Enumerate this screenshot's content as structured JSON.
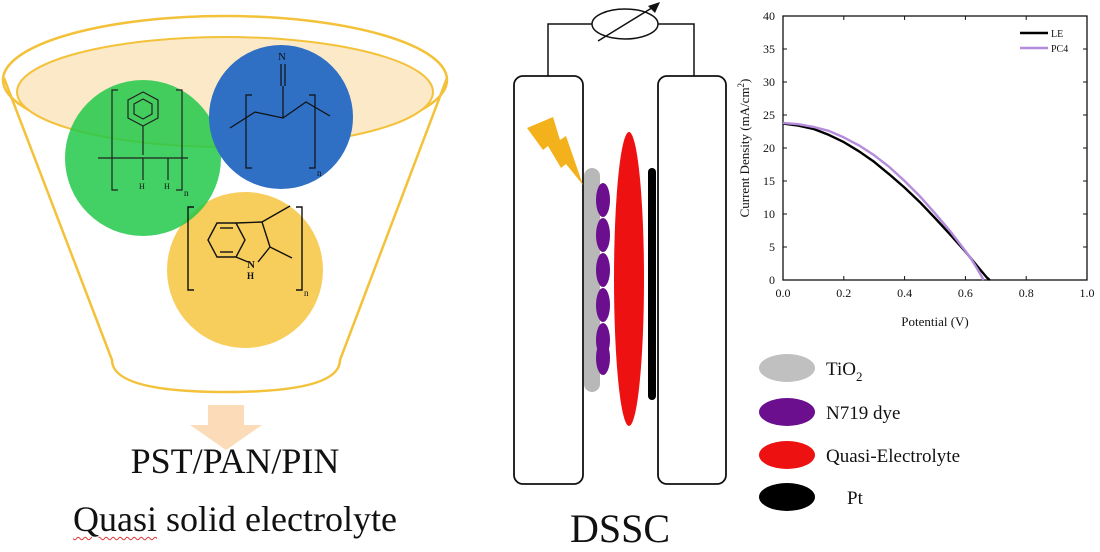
{
  "funnel": {
    "caption_line1": "PST/PAN/PIN",
    "caption_word1": "Quasi",
    "caption_rest": " solid electrolyte",
    "polymer_labels": {
      "pst_h1": "H",
      "pst_h2": "H",
      "pst_n": "n",
      "pan_n_top": "N",
      "pan_n": "n",
      "pin_nh": "N",
      "pin_h": "H",
      "pin_n": "n"
    },
    "colors": {
      "funnel": "#f3c23a",
      "funnel_fill": "#fbe9c8",
      "pst": "#22c84a",
      "pan": "#2f6fc4",
      "pin": "#f6c84a",
      "arrow": "#fcdcb8"
    }
  },
  "dssc": {
    "label": "DSSC",
    "colors": {
      "tio2": "#b8b8b8",
      "dye": "#6b0f8f",
      "electrolyte": "#ee1111",
      "pt": "#000000",
      "lightning": "#f3b21b"
    }
  },
  "legend": {
    "items": [
      {
        "label": "TiO",
        "sub": "2",
        "color": "#c0c0c0"
      },
      {
        "label": "N719 dye",
        "color": "#6b0f8f"
      },
      {
        "label": "Quasi-Electrolyte",
        "color": "#ee1111"
      },
      {
        "label": "Pt",
        "color": "#000000"
      }
    ]
  },
  "chart_data": {
    "type": "line",
    "xlabel": "Potential (V)",
    "ylabel": "Current Density (mA/cm",
    "ylabel_sup": "2",
    "ylabel_end": ")",
    "xlim": [
      0.0,
      1.0
    ],
    "ylim": [
      0,
      40
    ],
    "xticks": [
      "0.0",
      "0.2",
      "0.4",
      "0.6",
      "0.8",
      "1.0"
    ],
    "yticks": [
      "0",
      "5",
      "10",
      "15",
      "20",
      "25",
      "30",
      "35",
      "40"
    ],
    "legend_position": "top-right",
    "series": [
      {
        "name": "LE",
        "color": "#000000",
        "x": [
          0.0,
          0.05,
          0.1,
          0.15,
          0.2,
          0.25,
          0.3,
          0.35,
          0.4,
          0.45,
          0.5,
          0.55,
          0.6,
          0.63,
          0.65,
          0.67,
          0.68
        ],
        "y": [
          23.7,
          23.4,
          22.9,
          22.0,
          20.9,
          19.5,
          17.9,
          16.0,
          14.0,
          11.8,
          9.4,
          6.9,
          4.3,
          2.6,
          1.5,
          0.4,
          0.0
        ]
      },
      {
        "name": "PC4",
        "color": "#b58cdc",
        "x": [
          0.0,
          0.05,
          0.1,
          0.15,
          0.2,
          0.25,
          0.3,
          0.35,
          0.4,
          0.45,
          0.5,
          0.55,
          0.6,
          0.62,
          0.64,
          0.66
        ],
        "y": [
          23.8,
          23.6,
          23.2,
          22.6,
          21.6,
          20.4,
          18.9,
          17.1,
          15.0,
          12.7,
          10.1,
          7.4,
          4.4,
          3.1,
          1.6,
          0.0
        ]
      }
    ]
  }
}
